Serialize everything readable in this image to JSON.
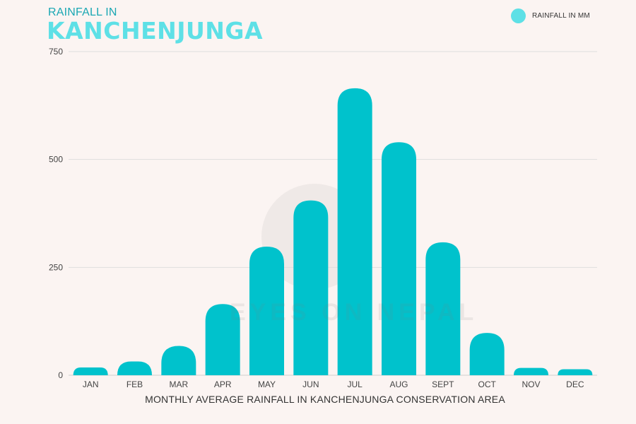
{
  "header": {
    "title_small": "RAINFALL IN",
    "title_big": "KANCHENJUNGA"
  },
  "legend": {
    "label": "RAINFALL IN MM",
    "color": "#5ee0e6"
  },
  "watermark": {
    "text": "EYES ON NEPAL"
  },
  "chart_data": {
    "type": "bar",
    "title": "RAINFALL IN KANCHENJUNGA",
    "xlabel": "MONTHLY AVERAGE RAINFALL IN KANCHENJUNGA CONSERVATION AREA",
    "ylabel": "",
    "ylim": [
      0,
      750
    ],
    "yticks": [
      0,
      250,
      500,
      750
    ],
    "grid": true,
    "legend_position": "top-right",
    "bar_color": "#00c2cc",
    "categories": [
      "JAN",
      "FEB",
      "MAR",
      "APR",
      "MAY",
      "JUN",
      "JUL",
      "AUG",
      "SEPT",
      "OCT",
      "NOV",
      "DEC"
    ],
    "series": [
      {
        "name": "RAINFALL IN MM",
        "values": [
          18,
          32,
          68,
          165,
          298,
          405,
          665,
          540,
          308,
          98,
          17,
          14
        ]
      }
    ]
  }
}
